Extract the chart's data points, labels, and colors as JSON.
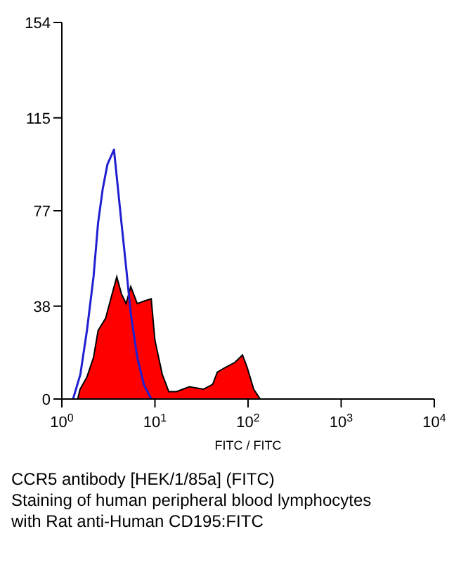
{
  "chart_data": {
    "type": "area",
    "xlabel": "FITC / FITC",
    "log": "x",
    "xlim": [
      1,
      10000
    ],
    "xticks": [
      {
        "value": 1,
        "label": "10$^{0}$"
      },
      {
        "value": 10,
        "label": "10$^{1}$"
      },
      {
        "value": 100,
        "label": "10$^{2}$"
      },
      {
        "value": 1000,
        "label": "10$^{3}$"
      },
      {
        "value": 10000,
        "label": "10$^{4}$"
      }
    ],
    "ylim": [
      0,
      154
    ],
    "yticks": [
      0,
      38,
      77,
      115,
      154
    ],
    "grid": false,
    "series": [
      {
        "color": "#ff0000",
        "x": [
          1.48,
          1.57,
          1.86,
          2.19,
          2.45,
          2.95,
          3.47,
          3.89,
          4.37,
          4.9,
          5.5,
          6.46,
          7.59,
          9.12,
          10,
          12,
          14.1,
          17,
          23.4,
          33.1,
          41.7,
          46.8,
          57.5,
          72.4,
          87.1,
          97.7,
          115,
          135
        ],
        "values": [
          0,
          4,
          9,
          17,
          28,
          33,
          43,
          50,
          43,
          39,
          46,
          39,
          40,
          41,
          24,
          10,
          3,
          3,
          5,
          4,
          6,
          11,
          13,
          15,
          18,
          13,
          4,
          0
        ]
      },
      {
        "type": "line",
        "color": "#2020d0",
        "x": [
          1.32,
          1.58,
          1.86,
          2.19,
          2.45,
          2.75,
          3.09,
          3.63,
          4.37,
          4.9,
          5.5,
          6.46,
          7.59,
          9.12
        ],
        "values": [
          0,
          10,
          28,
          50,
          72,
          86,
          96,
          102,
          72,
          54,
          35,
          17,
          6,
          0
        ]
      }
    ],
    "annotations": [
      "CCR5 antibody [HEK/1/85a] (FITC)",
      "Staining of human peripheral blood lymphocytes",
      "with Rat anti-Human CD195:FITC"
    ]
  }
}
